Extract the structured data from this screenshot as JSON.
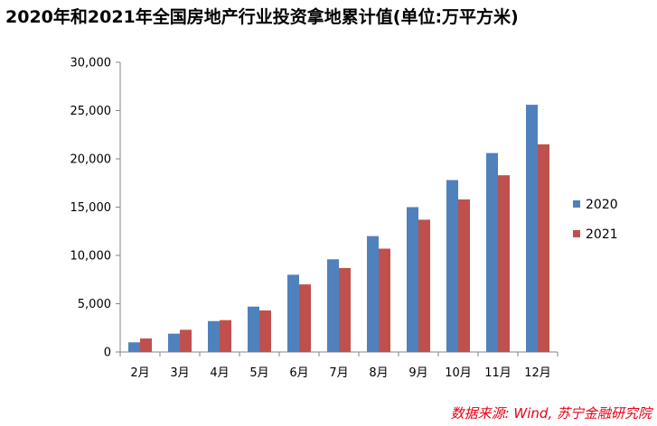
{
  "chart_data": {
    "type": "bar",
    "title": "2020年和2021年全国房地产行业投资拿地累计值(单位:万平方米)",
    "categories": [
      "2月",
      "3月",
      "4月",
      "5月",
      "6月",
      "7月",
      "8月",
      "9月",
      "10月",
      "11月",
      "12月"
    ],
    "series": [
      {
        "name": "2020",
        "color": "#4f81bd",
        "values": [
          1000,
          1900,
          3200,
          4700,
          8000,
          9600,
          12000,
          15000,
          17800,
          20600,
          25600
        ]
      },
      {
        "name": "2021",
        "color": "#c0504d",
        "values": [
          1400,
          2300,
          3300,
          4300,
          7000,
          8700,
          10700,
          13700,
          15800,
          18300,
          21500
        ]
      }
    ],
    "ylim": [
      0,
      30000
    ],
    "yticks": [
      "0",
      "5,000",
      "10,000",
      "15,000",
      "20,000",
      "25,000",
      "30,000"
    ],
    "legend_position": "right",
    "grid": false
  },
  "source": "数据来源: Wind, 苏宁金融研究院"
}
